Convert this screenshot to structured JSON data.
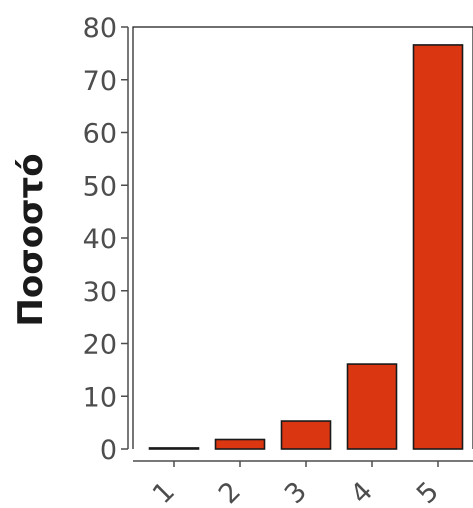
{
  "chart_data": {
    "type": "bar",
    "categories": [
      "1",
      "2",
      "3",
      "4",
      "5"
    ],
    "values": [
      0.2,
      1.8,
      5.3,
      16.1,
      76.6
    ],
    "title": "",
    "xlabel": "",
    "ylabel": "Ποσοστό",
    "ylim": [
      0,
      80
    ],
    "yticks": [
      0,
      10,
      20,
      30,
      40,
      50,
      60,
      70,
      80
    ],
    "grid": false,
    "legend": "none",
    "bar_color": "#d93611",
    "bar_edge_color": "#1a1a1a",
    "axis_color": "#4d4d4d"
  }
}
